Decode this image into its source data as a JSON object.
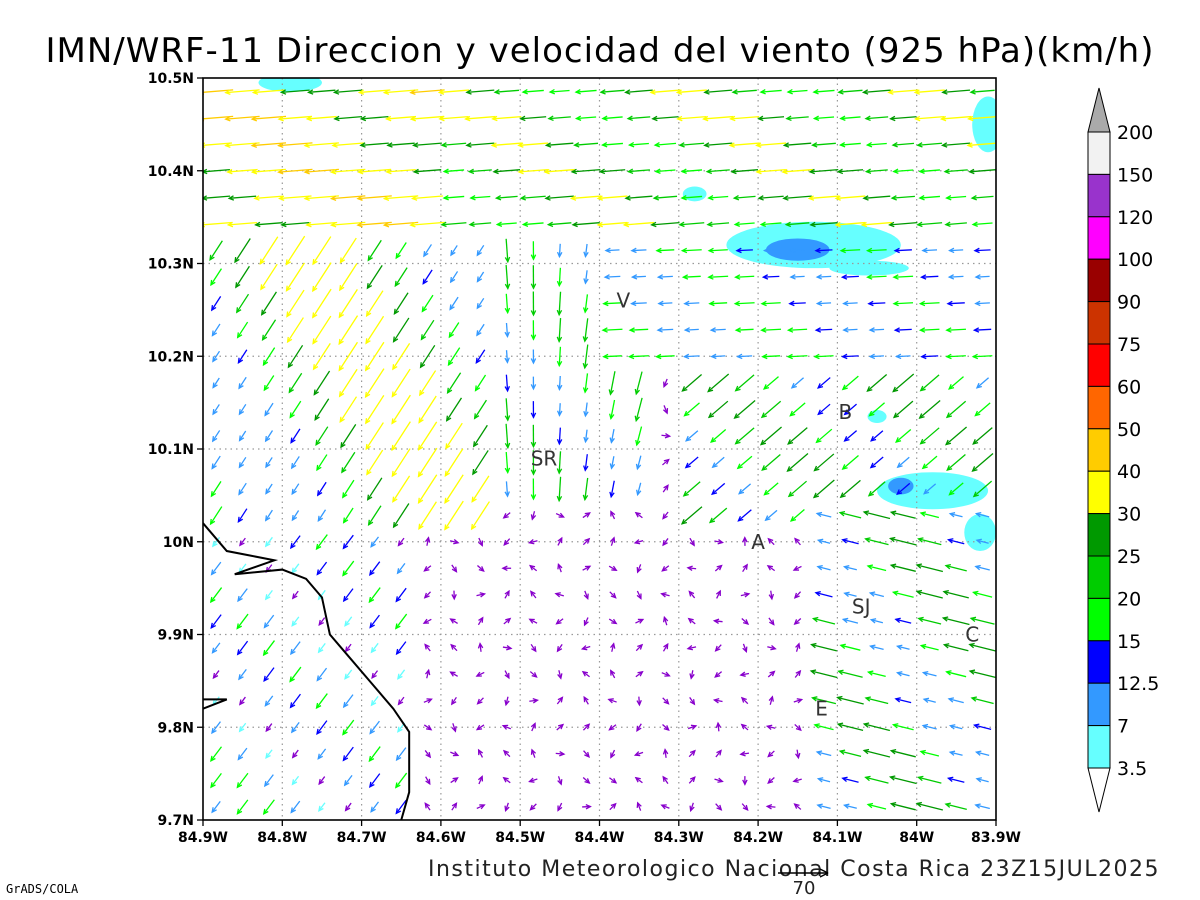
{
  "header": {
    "title": "IMN/WRF-11 Direccion y velocidad del viento (925 hPa)(km/h)"
  },
  "footer": {
    "credit": "Instituto Meteorologico Nacional Costa Rica 23Z15JUL2025",
    "software": "GrADS/COLA",
    "reference_vector_label": "70"
  },
  "axes": {
    "x_ticks": [
      "84.9W",
      "84.8W",
      "84.7W",
      "84.6W",
      "84.5W",
      "84.4W",
      "84.3W",
      "84.2W",
      "84.1W",
      "84W",
      "83.9W"
    ],
    "y_ticks": [
      "10.5N",
      "10.4N",
      "10.3N",
      "10.2N",
      "10.1N",
      "10N",
      "9.9N",
      "9.8N",
      "9.7N"
    ],
    "lon_range": [
      -84.9,
      -83.9
    ],
    "lat_range": [
      9.7,
      10.5
    ],
    "grid": true
  },
  "places": [
    {
      "label": "V",
      "lon": -84.37,
      "lat": 10.26
    },
    {
      "label": "SR",
      "lon": -84.47,
      "lat": 10.09
    },
    {
      "label": "B",
      "lon": -84.09,
      "lat": 10.14
    },
    {
      "label": "A",
      "lon": -84.2,
      "lat": 10.0
    },
    {
      "label": "SJ",
      "lon": -84.07,
      "lat": 9.93
    },
    {
      "label": "C",
      "lon": -83.93,
      "lat": 9.9
    },
    {
      "label": "E",
      "lon": -84.12,
      "lat": 9.82
    }
  ],
  "colorbar": {
    "labels": [
      "200",
      "150",
      "120",
      "100",
      "90",
      "75",
      "60",
      "50",
      "40",
      "30",
      "25",
      "20",
      "15",
      "12.5",
      "7",
      "3.5"
    ],
    "colors": [
      "#f2f2f2",
      "#9933cc",
      "#ff00ff",
      "#990000",
      "#cc3300",
      "#ff0000",
      "#ff6600",
      "#ffcc00",
      "#ffff00",
      "#009900",
      "#00cc00",
      "#00ff00",
      "#0000ff",
      "#3399ff",
      "#66ffff"
    ],
    "top_arrow_color": "#aaaaaa",
    "bottom_arrow_color": "#ffffff"
  },
  "shading": [
    {
      "name": "shade-top-left",
      "lon": -84.79,
      "lat": 10.495,
      "rlon": 0.04,
      "rlat": 0.01,
      "color": "#66ffff"
    },
    {
      "name": "shade-top-right",
      "lon": -83.91,
      "lat": 10.45,
      "rlon": 0.02,
      "rlat": 0.03,
      "color": "#66ffff"
    },
    {
      "name": "shade-small-north",
      "lon": -84.28,
      "lat": 10.375,
      "rlon": 0.015,
      "rlat": 0.008,
      "color": "#66ffff"
    },
    {
      "name": "shade-north-cyan",
      "lon": -84.13,
      "lat": 10.32,
      "rlon": 0.11,
      "rlat": 0.025,
      "color": "#66ffff"
    },
    {
      "name": "shade-north-cyan-tail",
      "lon": -84.06,
      "lat": 10.295,
      "rlon": 0.05,
      "rlat": 0.008,
      "color": "#66ffff"
    },
    {
      "name": "shade-north-blue",
      "lon": -84.15,
      "lat": 10.315,
      "rlon": 0.04,
      "rlat": 0.012,
      "color": "#3399ff"
    },
    {
      "name": "shade-east-cyan",
      "lon": -83.98,
      "lat": 10.055,
      "rlon": 0.07,
      "rlat": 0.02,
      "color": "#66ffff"
    },
    {
      "name": "shade-east-cyan-2",
      "lon": -83.92,
      "lat": 10.01,
      "rlon": 0.02,
      "rlat": 0.02,
      "color": "#66ffff"
    },
    {
      "name": "shade-east-blue",
      "lon": -84.02,
      "lat": 10.06,
      "rlon": 0.016,
      "rlat": 0.009,
      "color": "#3399ff"
    },
    {
      "name": "shade-east-small",
      "lon": -84.05,
      "lat": 10.135,
      "rlon": 0.012,
      "rlat": 0.007,
      "color": "#66ffff"
    }
  ],
  "coastline": [
    [
      -84.9,
      10.02
    ],
    [
      -84.87,
      9.99
    ],
    [
      -84.84,
      9.985
    ],
    [
      -84.81,
      9.98
    ],
    [
      -84.86,
      9.965
    ],
    [
      -84.8,
      9.97
    ],
    [
      -84.77,
      9.96
    ],
    [
      -84.75,
      9.94
    ],
    [
      -84.74,
      9.9
    ],
    [
      -84.72,
      9.88
    ],
    [
      -84.69,
      9.85
    ],
    [
      -84.66,
      9.82
    ],
    [
      -84.64,
      9.795
    ],
    [
      -84.64,
      9.73
    ],
    [
      -84.65,
      9.7
    ]
  ],
  "coastline_west": [
    [
      -84.9,
      9.82
    ],
    [
      -84.87,
      9.83
    ],
    [
      -84.9,
      9.83
    ]
  ],
  "wind_field_note": "",
  "colors": {
    "frame": "#000000",
    "grid": "#999999",
    "coast": "#000000",
    "text": "#000000"
  }
}
